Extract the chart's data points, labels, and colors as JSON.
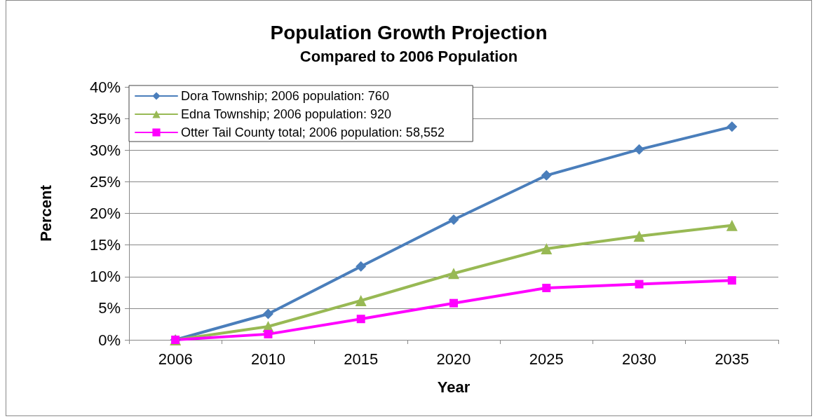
{
  "chart_data": {
    "type": "line",
    "title": "Population Growth Projection",
    "subtitle": "Compared to 2006 Population",
    "xlabel": "Year",
    "ylabel": "Percent",
    "categories": [
      "2006",
      "2010",
      "2015",
      "2020",
      "2025",
      "2030",
      "2035"
    ],
    "series": [
      {
        "name": "Dora Township; 2006 population: 760",
        "color": "#4a7ebb",
        "marker": "diamond",
        "values": [
          0,
          4.1,
          11.6,
          19.0,
          26.0,
          30.1,
          33.7
        ]
      },
      {
        "name": "Edna Township; 2006 population: 920",
        "color": "#98b954",
        "marker": "triangle",
        "values": [
          0,
          2.1,
          6.2,
          10.5,
          14.4,
          16.4,
          18.1
        ]
      },
      {
        "name": "Otter Tail County total; 2006 population: 58,552",
        "color": "#ff00ff",
        "marker": "square",
        "values": [
          0,
          0.9,
          3.3,
          5.8,
          8.2,
          8.8,
          9.4
        ]
      }
    ],
    "ylim": [
      0,
      40
    ],
    "yticks": [
      {
        "value": 0,
        "label": "0%"
      },
      {
        "value": 5,
        "label": "5%"
      },
      {
        "value": 10,
        "label": "10%"
      },
      {
        "value": 15,
        "label": "15%"
      },
      {
        "value": 20,
        "label": "20%"
      },
      {
        "value": 25,
        "label": "25%"
      },
      {
        "value": 30,
        "label": "30%"
      },
      {
        "value": 35,
        "label": "35%"
      },
      {
        "value": 40,
        "label": "40%"
      }
    ],
    "grid": "y",
    "legend": "top left",
    "line_style": "solid"
  }
}
